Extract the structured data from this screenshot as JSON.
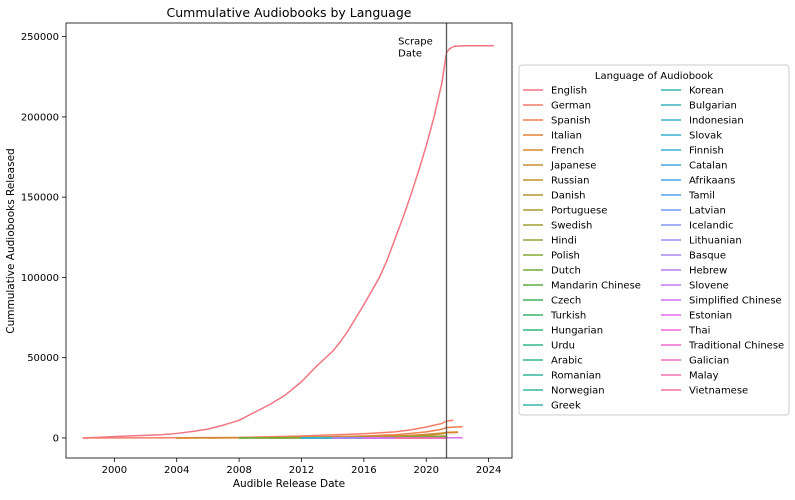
{
  "chart_data": {
    "type": "line",
    "title": "Cummulative Audiobooks by Language",
    "xlabel": "Audible Release Date",
    "ylabel": "Cummulative Audiobooks Released",
    "xlim": [
      1996.9,
      2025.5
    ],
    "ylim": [
      -12500,
      258500
    ],
    "x_ticks": [
      2000,
      2004,
      2008,
      2012,
      2016,
      2020,
      2024
    ],
    "y_ticks": [
      0,
      50000,
      100000,
      150000,
      200000,
      250000
    ],
    "grid": false,
    "legend": {
      "title": "Language of Audiobook",
      "placement": "outside-right",
      "columns": 2
    },
    "annotations": [
      {
        "type": "vline",
        "x": 2021.3,
        "color": "#555555"
      },
      {
        "type": "text",
        "x": 2018.2,
        "y": 245000,
        "lines": [
          "Scrape",
          "Date"
        ]
      }
    ],
    "series": [
      {
        "name": "English",
        "color": "#f37483",
        "x": [
          1998,
          2000,
          2001,
          2002,
          2003,
          2004,
          2005,
          2006,
          2007,
          2008,
          2008.5,
          2009,
          2010,
          2011,
          2012,
          2013,
          2014,
          2014.5,
          2015,
          2016,
          2017,
          2017.5,
          2018,
          2018.5,
          2019,
          2019.5,
          2020,
          2020.5,
          2021,
          2021.3,
          2021.5,
          2021.8,
          2022.5,
          2024.3
        ],
        "y": [
          0,
          800,
          1300,
          1600,
          2000,
          2800,
          4000,
          5500,
          8000,
          11000,
          13500,
          16000,
          21000,
          27000,
          35000,
          45000,
          54000,
          60000,
          67000,
          83000,
          100000,
          111000,
          124000,
          137000,
          151000,
          166000,
          182000,
          200000,
          221000,
          240000,
          242500,
          244000,
          244300,
          244300
        ]
      },
      {
        "name": "German",
        "color": "#f47c69",
        "x": [
          1998,
          2004,
          2008,
          2012,
          2016,
          2018,
          2019,
          2020,
          2021,
          2021.3,
          2021.7
        ],
        "y": [
          0,
          100,
          300,
          1200,
          2600,
          3800,
          5000,
          6800,
          9000,
          10500,
          11000
        ]
      },
      {
        "name": "Spanish",
        "color": "#ee7e4c",
        "x": [
          2004,
          2008,
          2012,
          2016,
          2018,
          2019,
          2020,
          2021,
          2021.3,
          2022.3
        ],
        "y": [
          0,
          100,
          400,
          1200,
          2000,
          2800,
          3800,
          5400,
          6500,
          7000
        ]
      },
      {
        "name": "Italian",
        "color": "#e28237",
        "x": [
          2006,
          2012,
          2016,
          2018,
          2019,
          2020,
          2021,
          2021.3,
          2022
        ],
        "y": [
          0,
          200,
          500,
          1000,
          1400,
          2000,
          2800,
          3200,
          3400
        ]
      },
      {
        "name": "French",
        "color": "#d5892e",
        "x": [
          2004,
          2012,
          2016,
          2018,
          2019,
          2020,
          2021,
          2021.3,
          2022
        ],
        "y": [
          0,
          300,
          700,
          1200,
          1600,
          2200,
          3000,
          3500,
          3700
        ]
      },
      {
        "name": "Japanese",
        "color": "#ca8f30",
        "x": [
          2008,
          2014,
          2018,
          2020,
          2021,
          2021.3
        ],
        "y": [
          0,
          300,
          900,
          1600,
          2500,
          3000
        ]
      },
      {
        "name": "Russian",
        "color": "#bf9330",
        "x": [
          2010,
          2016,
          2019,
          2021.3
        ],
        "y": [
          0,
          200,
          600,
          1200
        ]
      },
      {
        "name": "Danish",
        "color": "#b59733",
        "x": [
          2009,
          2015,
          2019,
          2021.3
        ],
        "y": [
          0,
          300,
          700,
          1100
        ]
      },
      {
        "name": "Portuguese",
        "color": "#a99c35",
        "x": [
          2008,
          2014,
          2019,
          2021.3
        ],
        "y": [
          0,
          200,
          600,
          1000
        ]
      },
      {
        "name": "Swedish",
        "color": "#9ea035",
        "x": [
          2010,
          2016,
          2020,
          2021.3
        ],
        "y": [
          0,
          200,
          700,
          900
        ]
      },
      {
        "name": "Hindi",
        "color": "#91a433",
        "x": [
          2016,
          2019,
          2021.3
        ],
        "y": [
          0,
          300,
          800
        ]
      },
      {
        "name": "Polish",
        "color": "#84a834",
        "x": [
          2010,
          2016,
          2021.3
        ],
        "y": [
          0,
          200,
          600
        ]
      },
      {
        "name": "Dutch",
        "color": "#72ab3a",
        "x": [
          2008,
          2016,
          2021.3
        ],
        "y": [
          0,
          200,
          500
        ]
      },
      {
        "name": "Mandarin Chinese",
        "color": "#5cae48",
        "x": [
          2012,
          2018,
          2021.3
        ],
        "y": [
          0,
          150,
          400
        ]
      },
      {
        "name": "Czech",
        "color": "#45b15a",
        "x": [
          2012,
          2018,
          2021.3
        ],
        "y": [
          0,
          100,
          300
        ]
      },
      {
        "name": "Turkish",
        "color": "#36b36b",
        "x": [
          2014,
          2021.3
        ],
        "y": [
          0,
          200
        ]
      },
      {
        "name": "Hungarian",
        "color": "#33b479",
        "x": [
          2014,
          2021.3
        ],
        "y": [
          0,
          150
        ]
      },
      {
        "name": "Urdu",
        "color": "#35b585",
        "x": [
          2016,
          2021.3
        ],
        "y": [
          0,
          100
        ]
      },
      {
        "name": "Arabic",
        "color": "#36b590",
        "x": [
          2014,
          2021.3
        ],
        "y": [
          0,
          150
        ]
      },
      {
        "name": "Romanian",
        "color": "#37b59a",
        "x": [
          2012,
          2021.3
        ],
        "y": [
          0,
          100
        ]
      },
      {
        "name": "Norwegian",
        "color": "#37b5a3",
        "x": [
          2012,
          2021.3
        ],
        "y": [
          0,
          200
        ]
      },
      {
        "name": "Greek",
        "color": "#38b5ac",
        "x": [
          2014,
          2021.3
        ],
        "y": [
          0,
          80
        ]
      },
      {
        "name": "Korean",
        "color": "#39b4b5",
        "x": [
          2016,
          2021.3
        ],
        "y": [
          0,
          80
        ]
      },
      {
        "name": "Bulgarian",
        "color": "#3ab3bd",
        "x": [
          2016,
          2021.3
        ],
        "y": [
          0,
          60
        ]
      },
      {
        "name": "Indonesian",
        "color": "#3ab2c6",
        "x": [
          2018,
          2021.3
        ],
        "y": [
          0,
          60
        ]
      },
      {
        "name": "Slovak",
        "color": "#3bb0cf",
        "x": [
          2016,
          2021.3
        ],
        "y": [
          0,
          50
        ]
      },
      {
        "name": "Finnish",
        "color": "#3daed9",
        "x": [
          2012,
          2021.3
        ],
        "y": [
          0,
          80
        ]
      },
      {
        "name": "Catalan",
        "color": "#43abe3",
        "x": [
          2014,
          2021.3
        ],
        "y": [
          0,
          40
        ]
      },
      {
        "name": "Afrikaans",
        "color": "#4ca7ec",
        "x": [
          2016,
          2021.3
        ],
        "y": [
          0,
          30
        ]
      },
      {
        "name": "Tamil",
        "color": "#5aa2f4",
        "x": [
          2018,
          2021.3
        ],
        "y": [
          0,
          40
        ]
      },
      {
        "name": "Latvian",
        "color": "#709bf5",
        "x": [
          2016,
          2021.3
        ],
        "y": [
          0,
          20
        ]
      },
      {
        "name": "Icelandic",
        "color": "#8495f5",
        "x": [
          2014,
          2021.3
        ],
        "y": [
          0,
          30
        ]
      },
      {
        "name": "Lithuanian",
        "color": "#968ef5",
        "x": [
          2016,
          2021.3
        ],
        "y": [
          0,
          20
        ]
      },
      {
        "name": "Basque",
        "color": "#a887f5",
        "x": [
          2016,
          2021.3
        ],
        "y": [
          0,
          20
        ]
      },
      {
        "name": "Hebrew",
        "color": "#b880f4",
        "x": [
          2014,
          2021.3
        ],
        "y": [
          0,
          30
        ]
      },
      {
        "name": "Slovene",
        "color": "#c878f2",
        "x": [
          2016,
          2021.3
        ],
        "y": [
          0,
          20
        ]
      },
      {
        "name": "Simplified Chinese",
        "color": "#d770ef",
        "x": [
          2018,
          2021.3,
          2022.3
        ],
        "y": [
          0,
          100,
          120
        ]
      },
      {
        "name": "Estonian",
        "color": "#e56beb",
        "x": [
          2016,
          2021.3
        ],
        "y": [
          0,
          20
        ]
      },
      {
        "name": "Thai",
        "color": "#ef69dd",
        "x": [
          2018,
          2021.3
        ],
        "y": [
          0,
          20
        ]
      },
      {
        "name": "Traditional Chinese",
        "color": "#f16bcf",
        "x": [
          2018,
          2021.3
        ],
        "y": [
          0,
          20
        ]
      },
      {
        "name": "Galician",
        "color": "#f26dc1",
        "x": [
          2018,
          2021.3
        ],
        "y": [
          0,
          10
        ]
      },
      {
        "name": "Malay",
        "color": "#f270b3",
        "x": [
          2018,
          2021.3
        ],
        "y": [
          0,
          10
        ]
      },
      {
        "name": "Vietnamese",
        "color": "#f272a4",
        "x": [
          2018,
          2021.3
        ],
        "y": [
          0,
          10
        ]
      }
    ]
  }
}
